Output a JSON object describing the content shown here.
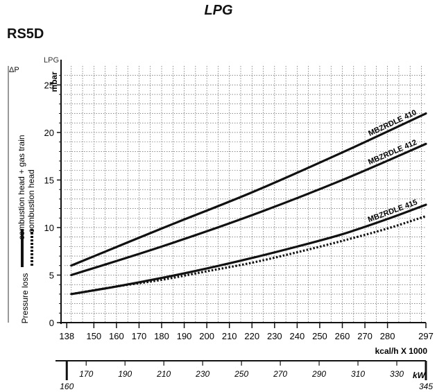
{
  "header": {
    "title": "LPG",
    "model": "RS5D"
  },
  "chart_data": {
    "type": "line",
    "fuel_label": "LPG",
    "ylabel_symbol": "ΔP",
    "ylabel_unit": "mbar",
    "side_labels": {
      "main": "Pressure loss",
      "solid_meaning": "combustion head + gas train",
      "dotted_meaning": "combustion head"
    },
    "ylim": [
      0,
      27
    ],
    "xlim": [
      137,
      297
    ],
    "y_ticks": [
      0,
      5,
      10,
      15,
      20,
      25
    ],
    "x_ticks": [
      138,
      150,
      160,
      170,
      180,
      190,
      200,
      210,
      220,
      230,
      240,
      250,
      260,
      270,
      280,
      297
    ],
    "x_unit": "kcal/h X 1000",
    "kw_ticks": [
      160,
      170,
      190,
      210,
      230,
      250,
      270,
      290,
      310,
      330,
      345
    ],
    "kw_unit": "kW",
    "grid": true,
    "series": [
      {
        "name": "MBZRDLE 410",
        "style": "solid",
        "x": [
          140,
          180,
          220,
          260,
          297
        ],
        "y": [
          6.0,
          9.9,
          13.7,
          17.9,
          22.0
        ]
      },
      {
        "name": "MBZRDLE 412",
        "style": "solid",
        "x": [
          140,
          180,
          220,
          260,
          297
        ],
        "y": [
          5.0,
          8.0,
          11.3,
          15.0,
          18.8
        ]
      },
      {
        "name": "MBZRDLE 415",
        "style": "solid",
        "x": [
          140,
          160,
          180,
          200,
          220,
          240,
          260,
          280,
          297
        ],
        "y": [
          3.0,
          3.8,
          4.7,
          5.7,
          6.8,
          8.0,
          9.3,
          10.9,
          12.4
        ]
      },
      {
        "name": "",
        "style": "dotted",
        "x": [
          140,
          160,
          180,
          200,
          220,
          240,
          260,
          280,
          297
        ],
        "y": [
          3.0,
          3.8,
          4.5,
          5.4,
          6.3,
          7.4,
          8.6,
          9.9,
          11.2
        ]
      }
    ]
  }
}
